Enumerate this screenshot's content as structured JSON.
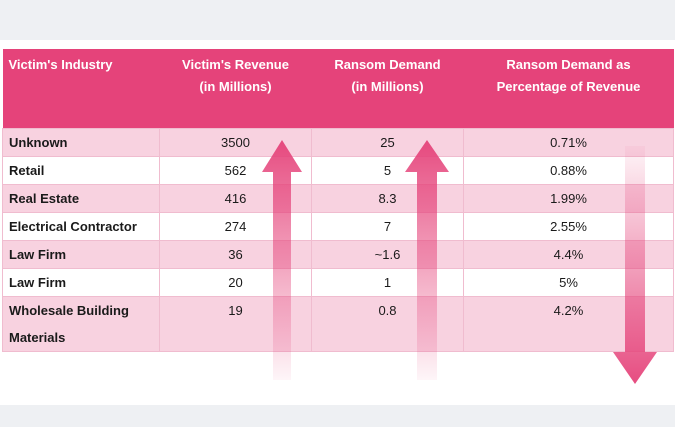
{
  "table": {
    "headers": [
      {
        "line1": "Victim's Industry",
        "line2": ""
      },
      {
        "line1": "Victim's Revenue",
        "line2": "(in Millions)"
      },
      {
        "line1": "Ransom Demand",
        "line2": "(in Millions)"
      },
      {
        "line1": "Ransom Demand as",
        "line2": "Percentage of Revenue"
      }
    ],
    "rows": [
      {
        "industry": "Unknown",
        "revenue": "3500",
        "demand": "25",
        "pct": "0.71%"
      },
      {
        "industry": "Retail",
        "revenue": "562",
        "demand": "5",
        "pct": "0.88%"
      },
      {
        "industry": "Real Estate",
        "revenue": "416",
        "demand": "8.3",
        "pct": "1.99%"
      },
      {
        "industry": "Electrical Contractor",
        "revenue": "274",
        "demand": "7",
        "pct": "2.55%"
      },
      {
        "industry": "Law Firm",
        "revenue": "36",
        "demand": "~1.6",
        "pct": "4.4%"
      },
      {
        "industry": "Law Firm",
        "revenue": "20",
        "demand": "1",
        "pct": "5%"
      },
      {
        "industry": "Wholesale Building Materials",
        "revenue": "19",
        "demand": "0.8",
        "pct": "4.2%"
      }
    ]
  },
  "arrows": [
    {
      "column": "revenue",
      "direction": "up"
    },
    {
      "column": "demand",
      "direction": "up"
    },
    {
      "column": "pct",
      "direction": "down"
    }
  ],
  "colors": {
    "header": "#e5437a",
    "band": "#f8d2e0",
    "arrow": "#e5437a"
  }
}
